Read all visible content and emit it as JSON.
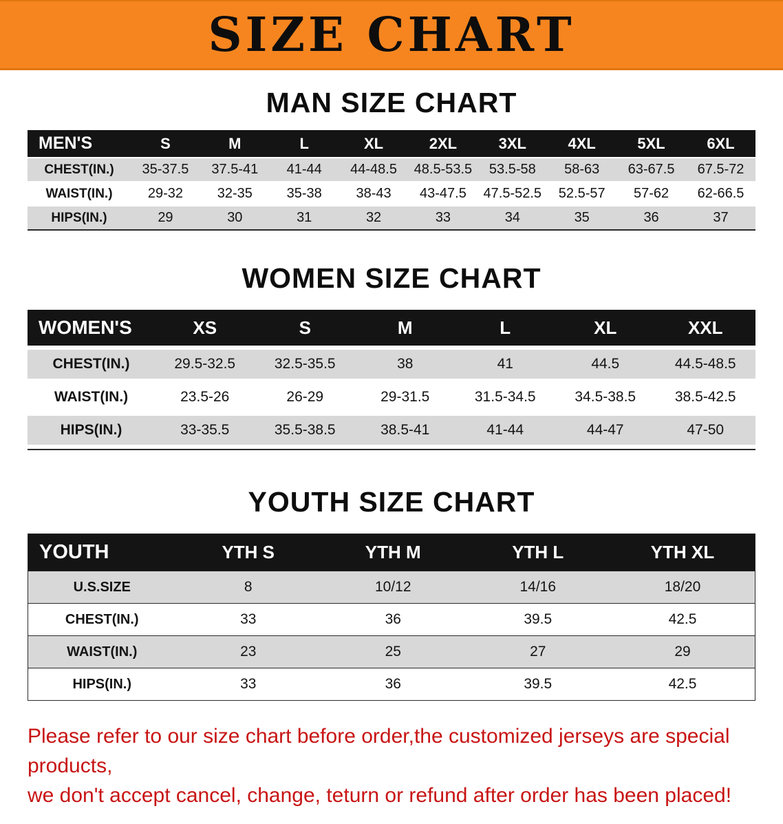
{
  "banner": {
    "title": "SIZE CHART"
  },
  "sections": [
    {
      "id": "men",
      "heading": "MAN SIZE CHART",
      "header": [
        "MEN'S",
        "S",
        "M",
        "L",
        "XL",
        "2XL",
        "3XL",
        "4XL",
        "5XL",
        "6XL"
      ],
      "rows": [
        [
          "CHEST(IN.)",
          "35-37.5",
          "37.5-41",
          "41-44",
          "44-48.5",
          "48.5-53.5",
          "53.5-58",
          "58-63",
          "63-67.5",
          "67.5-72"
        ],
        [
          "WAIST(IN.)",
          "29-32",
          "32-35",
          "35-38",
          "38-43",
          "43-47.5",
          "47.5-52.5",
          "52.5-57",
          "57-62",
          "62-66.5"
        ],
        [
          "HIPS(IN.)",
          "29",
          "30",
          "31",
          "32",
          "33",
          "34",
          "35",
          "36",
          "37"
        ]
      ]
    },
    {
      "id": "women",
      "heading": "WOMEN SIZE CHART",
      "header": [
        "WOMEN'S",
        "XS",
        "S",
        "M",
        "L",
        "XL",
        "XXL"
      ],
      "rows": [
        [
          "CHEST(IN.)",
          "29.5-32.5",
          "32.5-35.5",
          "38",
          "41",
          "44.5",
          "44.5-48.5"
        ],
        [
          "WAIST(IN.)",
          "23.5-26",
          "26-29",
          "29-31.5",
          "31.5-34.5",
          "34.5-38.5",
          "38.5-42.5"
        ],
        [
          "HIPS(IN.)",
          "33-35.5",
          "35.5-38.5",
          "38.5-41",
          "41-44",
          "44-47",
          "47-50"
        ]
      ]
    },
    {
      "id": "youth",
      "heading": "YOUTH SIZE CHART",
      "header": [
        "YOUTH",
        "YTH S",
        "YTH M",
        "YTH L",
        "YTH XL"
      ],
      "rows": [
        [
          "U.S.SIZE",
          "8",
          "10/12",
          "14/16",
          "18/20"
        ],
        [
          "CHEST(IN.)",
          "33",
          "36",
          "39.5",
          "42.5"
        ],
        [
          "WAIST(IN.)",
          "23",
          "25",
          "27",
          "29"
        ],
        [
          "HIPS(IN.)",
          "33",
          "36",
          "39.5",
          "42.5"
        ]
      ]
    }
  ],
  "footer": {
    "lines": [
      "Please refer to our size chart before order,the customized jerseys are special products,",
      "we don't accept cancel, change, teturn or refund after order has been placed!"
    ]
  },
  "colors": {
    "banner_bg": "#f6851f",
    "header_bg": "#141414",
    "row_gray": "#d8d8d8",
    "row_white": "#ffffff",
    "footer_red": "#c81414"
  }
}
